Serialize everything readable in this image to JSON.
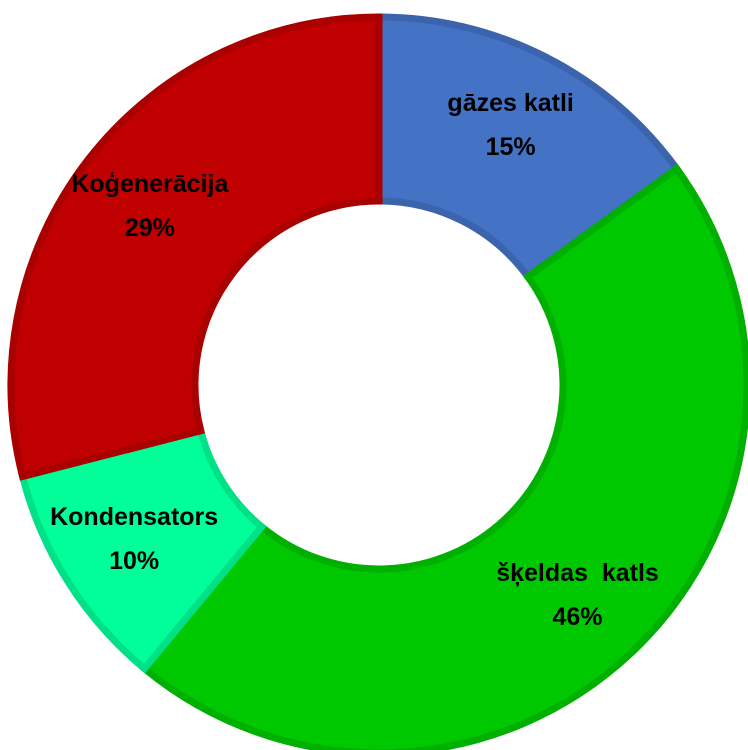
{
  "chart_data": {
    "type": "donut",
    "categories": [
      "gāzes katli",
      "šķeldas  katls",
      "Kondensators",
      "Koģenerācija"
    ],
    "values": [
      15,
      46,
      10,
      29
    ],
    "value_labels": [
      "15%",
      "46%",
      "10%",
      "29%"
    ],
    "colors": [
      "#4472c4",
      "#00c800",
      "#00ff99",
      "#c00000"
    ]
  }
}
